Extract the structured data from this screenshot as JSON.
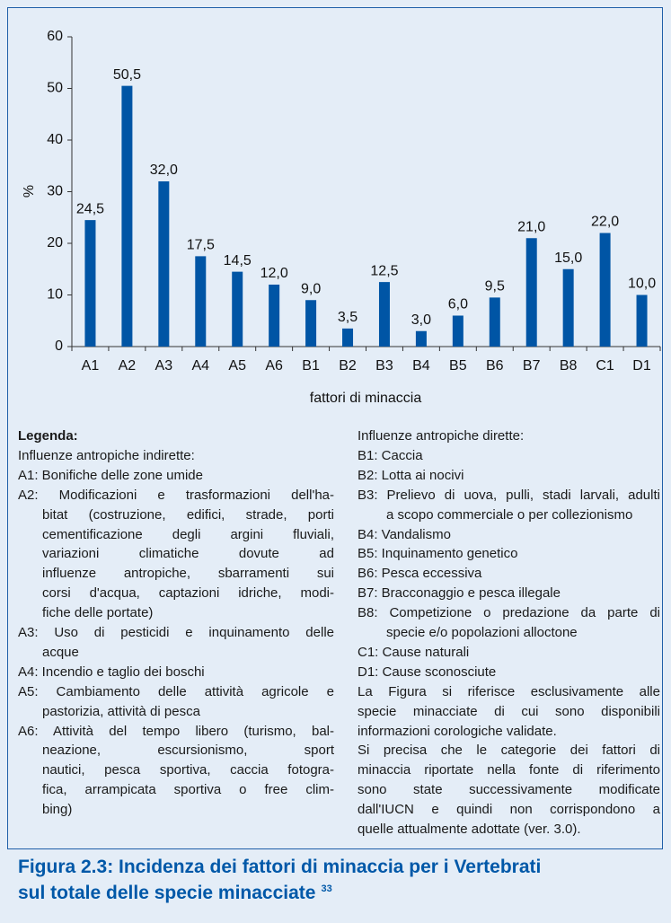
{
  "chart_data": {
    "type": "bar",
    "categories": [
      "A1",
      "A2",
      "A3",
      "A4",
      "A5",
      "A6",
      "B1",
      "B2",
      "B3",
      "B4",
      "B5",
      "B6",
      "B7",
      "B8",
      "C1",
      "D1"
    ],
    "values": [
      24.5,
      50.5,
      32.0,
      17.5,
      14.5,
      12.0,
      9.0,
      3.5,
      12.5,
      3.0,
      6.0,
      9.5,
      21.0,
      15.0,
      22.0,
      10.0
    ],
    "value_labels": [
      "24,5",
      "50,5",
      "32,0",
      "17,5",
      "14,5",
      "12,0",
      "9,0",
      "3,5",
      "12,5",
      "3,0",
      "6,0",
      "9,5",
      "21,0",
      "15,0",
      "22,0",
      "10,0"
    ],
    "color": "#0055a5",
    "ylim": [
      0,
      60
    ],
    "yticks": [
      0,
      10,
      20,
      30,
      40,
      50,
      60
    ],
    "ylabel": "%",
    "xlabel": "fattori di minaccia",
    "grid": false
  },
  "legend": {
    "title": "Legenda:",
    "left_heading": "Influenze antropiche indirette:",
    "left_items": [
      {
        "lines": [
          "A1: Bonifiche delle zone umide"
        ]
      },
      {
        "lines": [
          "A2: Modificazioni e trasformazioni dell'ha-",
          "bitat (costruzione, edifici, strade, porti",
          "cementificazione degli argini fluviali,",
          "variazioni climatiche dovute ad",
          "influenze antropiche, sbarramenti sui",
          "corsi d'acqua, captazioni idriche, modi-",
          "fiche delle portate)"
        ]
      },
      {
        "lines": [
          "A3: Uso di pesticidi e inquinamento delle",
          "acque"
        ]
      },
      {
        "lines": [
          "A4: Incendio e taglio dei boschi"
        ]
      },
      {
        "lines": [
          "A5: Cambiamento delle attività agricole e",
          "pastorizia, attività di pesca"
        ]
      },
      {
        "lines": [
          "A6: Attività del tempo libero (turismo, bal-",
          "neazione, escursionismo, sport",
          "nautici, pesca sportiva, caccia fotogra-",
          "fica, arrampicata sportiva o free clim-",
          "bing)"
        ]
      }
    ],
    "right_heading": "Influenze antropiche dirette:",
    "right_items": [
      {
        "lines": [
          "B1: Caccia"
        ]
      },
      {
        "lines": [
          "B2: Lotta ai nocivi"
        ]
      },
      {
        "lines": [
          "B3: Prelievo di uova, pulli, stadi larvali, adulti",
          "a scopo commerciale o per collezionismo"
        ]
      },
      {
        "lines": [
          "B4: Vandalismo"
        ]
      },
      {
        "lines": [
          "B5: Inquinamento genetico"
        ]
      },
      {
        "lines": [
          "B6: Pesca eccessiva"
        ]
      },
      {
        "lines": [
          "B7: Bracconaggio e pesca illegale"
        ]
      },
      {
        "lines": [
          "B8: Competizione o predazione da parte di",
          "specie e/o popolazioni alloctone"
        ]
      },
      {
        "lines": [
          "C1: Cause naturali"
        ]
      },
      {
        "lines": [
          "D1: Cause sconosciute"
        ]
      }
    ],
    "notes": [
      {
        "lines": [
          "La Figura si riferisce esclusivamente alle",
          "specie minacciate di cui sono disponibili",
          "informazioni corologiche validate."
        ]
      },
      {
        "lines": [
          "Si precisa che le categorie dei fattori di",
          "minaccia riportate nella fonte di riferimento",
          "sono state successivamente modificate",
          "dall'IUCN e quindi non corrispondono a",
          "quelle attualmente adottate (ver. 3.0)."
        ]
      }
    ]
  },
  "caption": {
    "lines": [
      "Figura 2.3: Incidenza dei fattori di minaccia per i Vertebrati",
      "sul totale delle specie minacciate"
    ],
    "footnote": "33"
  }
}
